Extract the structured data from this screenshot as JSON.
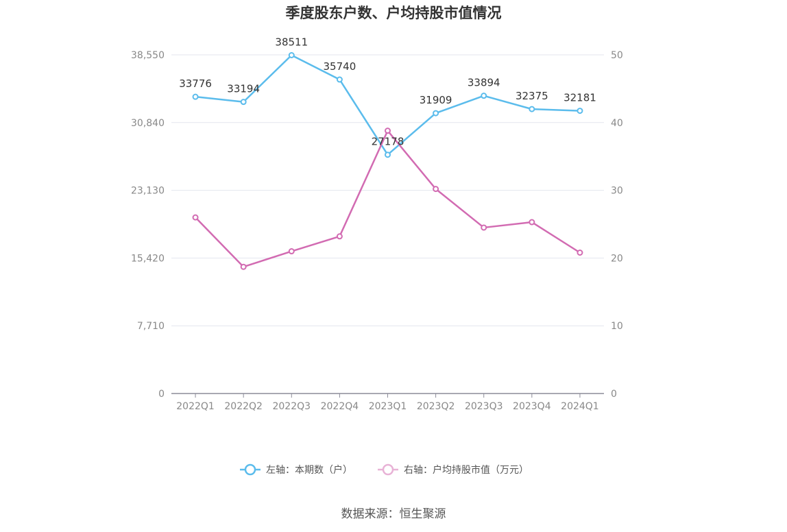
{
  "chart_data": {
    "type": "line",
    "title": "季度股东户数、户均持股市值情况",
    "categories": [
      "2022Q1",
      "2022Q2",
      "2022Q3",
      "2022Q4",
      "2023Q1",
      "2023Q2",
      "2023Q3",
      "2023Q4",
      "2024Q1"
    ],
    "y_left": {
      "ylim": [
        0,
        38550
      ],
      "ticks": [
        "0",
        "7,710",
        "15,420",
        "23,130",
        "30,840",
        "38,550"
      ],
      "tick_values": [
        0,
        7710,
        15420,
        23130,
        30840,
        38550
      ]
    },
    "y_right": {
      "ylim": [
        0,
        50
      ],
      "ticks": [
        "0",
        "10",
        "20",
        "30",
        "40",
        "50"
      ],
      "tick_values": [
        0,
        10,
        20,
        30,
        40,
        50
      ]
    },
    "series": [
      {
        "name": "左轴：本期数（户）",
        "axis": "left",
        "color": "#5bbcec",
        "values": [
          33776,
          33194,
          38511,
          35740,
          27178,
          31909,
          33894,
          32375,
          32181
        ],
        "labels": [
          "33776",
          "33194",
          "38511",
          "35740",
          "27178",
          "31909",
          "33894",
          "32375",
          "32181"
        ]
      },
      {
        "name": "右轴：户均持股市值（万元）",
        "axis": "right",
        "color": "#d26bb2",
        "values": [
          26.0,
          18.7,
          21.0,
          23.2,
          38.8,
          30.2,
          24.5,
          25.3,
          20.8
        ]
      }
    ],
    "grid": true,
    "legend_position": "bottom"
  },
  "source": "数据来源：恒生聚源"
}
